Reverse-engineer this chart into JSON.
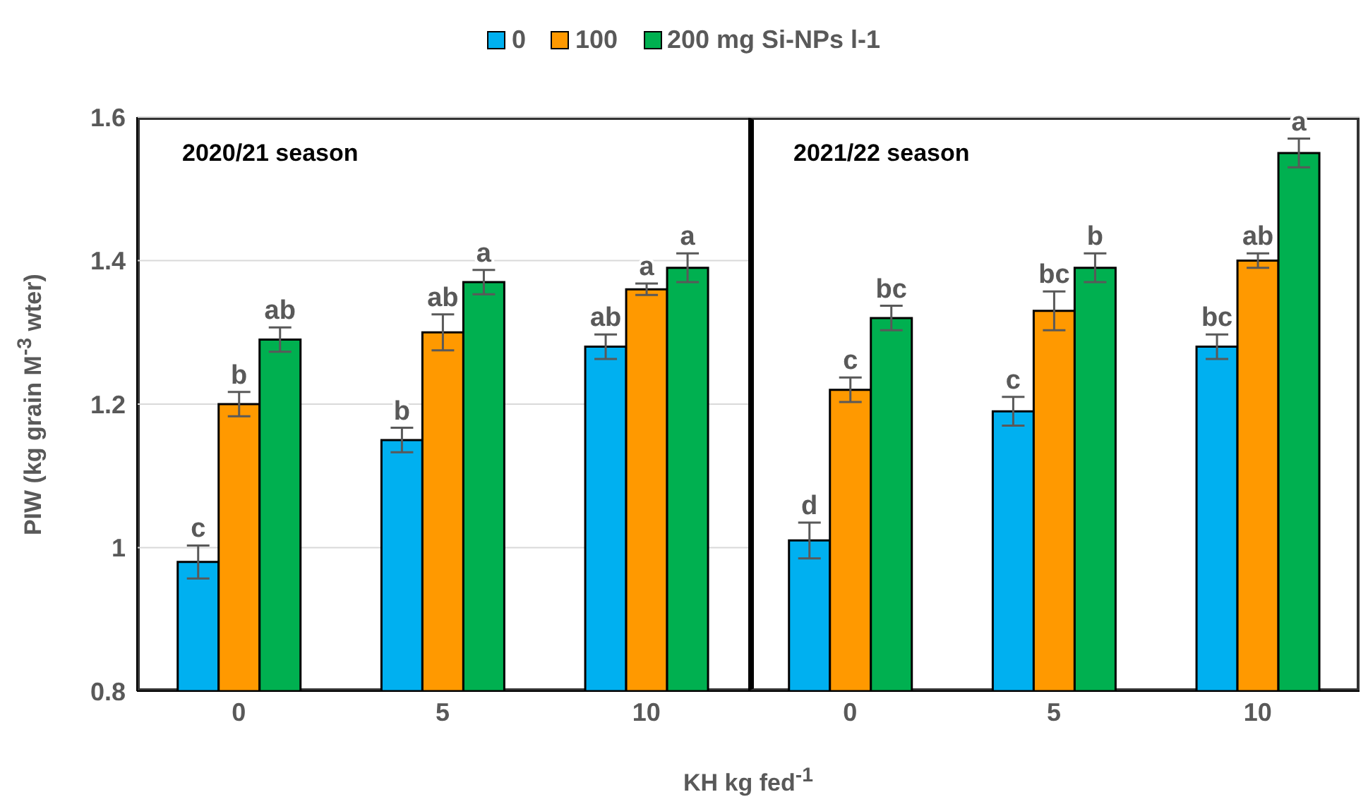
{
  "chart_data": [
    {
      "type": "bar",
      "xlabel": "KH kg fed$^{-1}$",
      "ylabel": "PIW (kg grain M$^{-3}$ wter)",
      "categories": [
        "0",
        "5",
        "10"
      ],
      "series": [
        {
          "name": "0",
          "color": "#00b0f0",
          "values": [
            0.98,
            1.15,
            1.28
          ],
          "errors": [
            0.023,
            0.017,
            0.017
          ],
          "value_labels": [
            "c",
            "b",
            "ab"
          ]
        },
        {
          "name": "100",
          "color": "#ff9900",
          "values": [
            1.2,
            1.3,
            1.36
          ],
          "errors": [
            0.017,
            0.025,
            0.008
          ],
          "value_labels": [
            "b",
            "ab",
            "a"
          ]
        },
        {
          "name": "200 mg Si-NPs l-1",
          "color": "#00b050",
          "values": [
            1.29,
            1.37,
            1.39
          ],
          "errors": [
            0.017,
            0.017,
            0.02
          ],
          "value_labels": [
            "ab",
            "a",
            "a"
          ]
        }
      ],
      "ylim": [
        0.8,
        1.6
      ],
      "yticks": [
        0.8,
        1,
        1.2,
        1.4,
        1.6
      ],
      "grid": "y",
      "legend": "top",
      "annotations": [
        "2020/21 season"
      ]
    },
    {
      "type": "bar",
      "categories": [
        "0",
        "5",
        "10"
      ],
      "series": [
        {
          "color": "#00b0f0",
          "values": [
            1.01,
            1.19,
            1.28
          ],
          "errors": [
            0.025,
            0.02,
            0.017
          ],
          "value_labels": [
            "d",
            "c",
            "bc"
          ]
        },
        {
          "color": "#ff9900",
          "values": [
            1.22,
            1.33,
            1.4
          ],
          "errors": [
            0.017,
            0.027,
            0.01
          ],
          "value_labels": [
            "c",
            "bc",
            "ab"
          ]
        },
        {
          "color": "#00b050",
          "values": [
            1.32,
            1.39,
            1.55
          ],
          "errors": [
            0.017,
            0.02,
            0.02
          ],
          "value_labels": [
            "bc",
            "b",
            "a"
          ]
        }
      ],
      "ylim": [
        0.8,
        1.6
      ],
      "yticks": [
        0.8,
        1,
        1.2,
        1.4,
        1.6
      ],
      "grid": "y",
      "tick_labels": "x",
      "annotations": [
        "2021/22 season"
      ]
    }
  ]
}
